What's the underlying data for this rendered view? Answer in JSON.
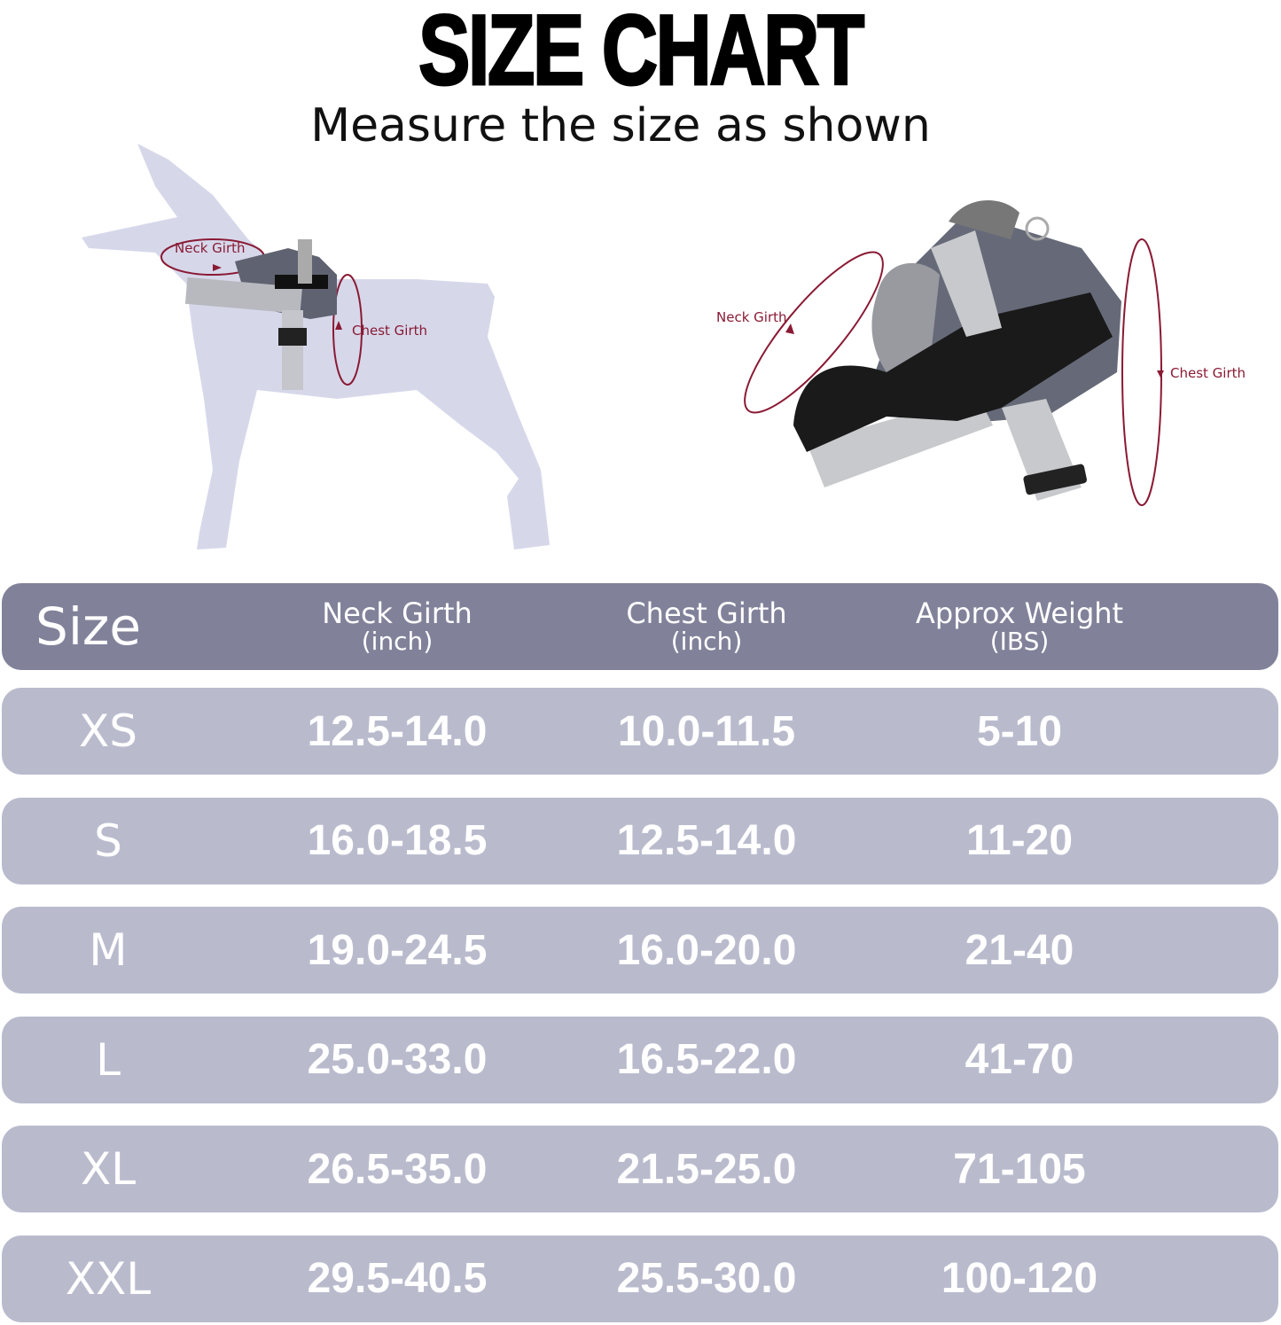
{
  "title": "SIZE CHART",
  "subtitle": "Measure the size as shown",
  "illustrations": {
    "dog_labels": {
      "neck": "Neck Girth",
      "chest": "Chest Girth"
    },
    "harness_labels": {
      "neck": "Neck Girth",
      "chest": "Chest Girth"
    }
  },
  "colors": {
    "header_bg": "#81829a",
    "row_bg": "#b9bbcd",
    "measure_line": "#8a1a34",
    "dog": "#d6d8ea"
  },
  "table": {
    "headers": [
      {
        "label": "Size",
        "unit": ""
      },
      {
        "label": "Neck Girth",
        "unit": "(inch)"
      },
      {
        "label": "Chest Girth",
        "unit": "(inch)"
      },
      {
        "label": "Approx Weight",
        "unit": "(IBS)"
      }
    ],
    "rows": [
      [
        "XS",
        "12.5-14.0",
        "10.0-11.5",
        "5-10"
      ],
      [
        "S",
        "16.0-18.5",
        "12.5-14.0",
        "11-20"
      ],
      [
        "M",
        "19.0-24.5",
        "16.0-20.0",
        "21-40"
      ],
      [
        "L",
        "25.0-33.0",
        "16.5-22.0",
        "41-70"
      ],
      [
        "XL",
        "26.5-35.0",
        "21.5-25.0",
        "71-105"
      ],
      [
        "XXL",
        "29.5-40.5",
        "25.5-30.0",
        "100-120"
      ]
    ]
  }
}
